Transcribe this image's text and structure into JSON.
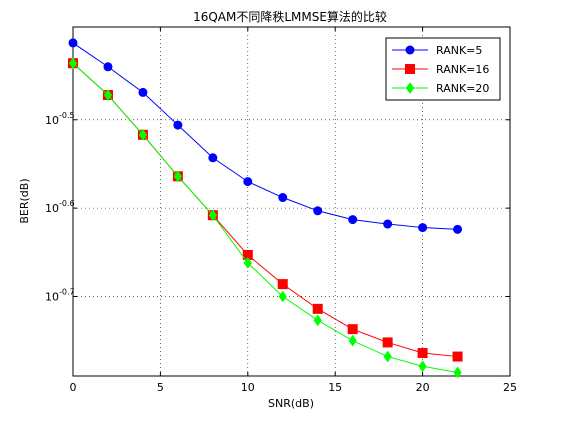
{
  "chart_data": {
    "type": "line",
    "title": "16QAM不同降秩LMMSE算法的比较",
    "xlabel": "SNR(dB)",
    "ylabel": "BER(dB)",
    "xlim": [
      0,
      25
    ],
    "ylim": [
      -0.79,
      -0.395
    ],
    "yscale": "log",
    "xticks": [
      0,
      5,
      10,
      15,
      20,
      25
    ],
    "xtick_labels": [
      "0",
      "5",
      "10",
      "15",
      "20",
      "25"
    ],
    "yticks": [
      -0.5,
      -0.6,
      -0.7
    ],
    "ytick_labels": [
      {
        "base": "10",
        "exp": "-0.5"
      },
      {
        "base": "10",
        "exp": "-0.6"
      },
      {
        "base": "10",
        "exp": "-0.7"
      }
    ],
    "grid": true,
    "legend_position": "top-right",
    "x": [
      0,
      2,
      4,
      6,
      8,
      10,
      12,
      14,
      16,
      18,
      20,
      22
    ],
    "series": [
      {
        "name": "RANK=5",
        "color": "#0000ff",
        "marker": "circle",
        "values": [
          -0.413,
          -0.44,
          -0.469,
          -0.506,
          -0.543,
          -0.57,
          -0.588,
          -0.603,
          -0.613,
          -0.618,
          -0.622,
          -0.624
        ]
      },
      {
        "name": "RANK=16",
        "color": "#ff0000",
        "marker": "square",
        "values": [
          -0.436,
          -0.472,
          -0.517,
          -0.564,
          -0.608,
          -0.653,
          -0.686,
          -0.714,
          -0.737,
          -0.752,
          -0.764,
          -0.768
        ]
      },
      {
        "name": "RANK=20",
        "color": "#00ff00",
        "marker": "diamond",
        "values": [
          -0.436,
          -0.472,
          -0.517,
          -0.564,
          -0.608,
          -0.662,
          -0.7,
          -0.727,
          -0.75,
          -0.768,
          -0.779,
          -0.786
        ]
      }
    ]
  }
}
